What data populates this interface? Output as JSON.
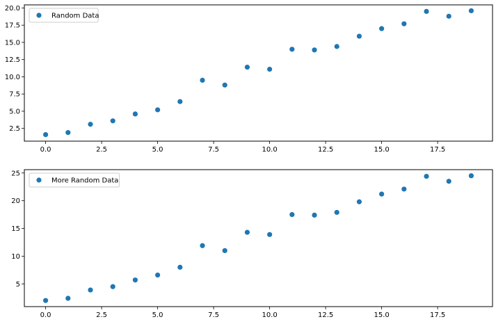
{
  "chart_data": [
    {
      "type": "scatter",
      "title": "",
      "xlabel": "",
      "ylabel": "",
      "xlim": [
        -0.95,
        19.95
      ],
      "ylim": [
        0.65,
        20.45
      ],
      "xticks": [
        0.0,
        2.5,
        5.0,
        7.5,
        10.0,
        12.5,
        15.0,
        17.5
      ],
      "xtick_labels": [
        "0.0",
        "2.5",
        "5.0",
        "7.5",
        "10.0",
        "12.5",
        "15.0",
        "17.5"
      ],
      "yticks": [
        2.5,
        5.0,
        7.5,
        10.0,
        12.5,
        15.0,
        17.5,
        20.0
      ],
      "ytick_labels": [
        "2.5",
        "5.0",
        "7.5",
        "10.0",
        "12.5",
        "15.0",
        "17.5",
        "20.0"
      ],
      "grid": false,
      "legend": "top-left",
      "series": [
        {
          "name": "Random Data",
          "color": "#1f77b4",
          "x": [
            0,
            1,
            2,
            3,
            4,
            5,
            6,
            7,
            8,
            9,
            10,
            11,
            12,
            13,
            14,
            15,
            16,
            17,
            18,
            19
          ],
          "y": [
            1.6,
            1.9,
            3.1,
            3.6,
            4.6,
            5.2,
            6.4,
            9.5,
            8.8,
            11.4,
            11.1,
            14.0,
            13.9,
            14.4,
            15.9,
            17.0,
            17.7,
            19.5,
            18.8,
            19.6
          ]
        }
      ]
    },
    {
      "type": "scatter",
      "title": "",
      "xlabel": "",
      "ylabel": "",
      "xlim": [
        -0.95,
        19.95
      ],
      "ylim": [
        0.9,
        25.6
      ],
      "xticks": [
        0.0,
        2.5,
        5.0,
        7.5,
        10.0,
        12.5,
        15.0,
        17.5
      ],
      "xtick_labels": [
        "0.0",
        "2.5",
        "5.0",
        "7.5",
        "10.0",
        "12.5",
        "15.0",
        "17.5"
      ],
      "yticks": [
        5,
        10,
        15,
        20,
        25
      ],
      "ytick_labels": [
        "5",
        "10",
        "15",
        "20",
        "25"
      ],
      "grid": false,
      "legend": "top-left",
      "series": [
        {
          "name": "More Random Data",
          "color": "#1f77b4",
          "x": [
            0,
            1,
            2,
            3,
            4,
            5,
            6,
            7,
            8,
            9,
            10,
            11,
            12,
            13,
            14,
            15,
            16,
            17,
            18,
            19
          ],
          "y": [
            2.0,
            2.4,
            3.9,
            4.5,
            5.7,
            6.6,
            8.0,
            11.9,
            11.0,
            14.3,
            13.9,
            17.5,
            17.4,
            17.9,
            19.8,
            21.2,
            22.1,
            24.4,
            23.5,
            24.5
          ]
        }
      ]
    }
  ]
}
